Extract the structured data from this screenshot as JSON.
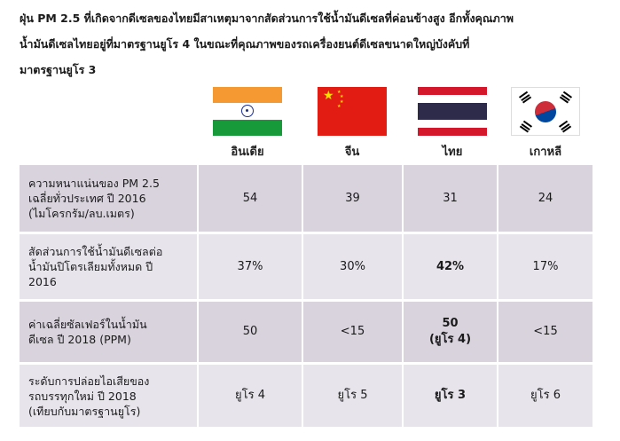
{
  "header": {
    "title_line1": "ฝุ่น PM 2.5 ที่เกิดจากดีเซลของไทยมีสาเหตุมาจากสัดส่วนการใช้น้ำมันดีเซลที่ค่อนข้างสูง อีกทั้งคุณภาพ",
    "title_line2": "น้ำมันดีเซลไทยอยู่ที่มาตรฐานยูโร 4 ในขณะที่คุณภาพของรถเครื่องยนต์ดีเซลขนาดใหญ่บังคับที่",
    "title_line3": "มาตรฐานยูโร 3"
  },
  "countries": [
    {
      "name": "อินเดีย",
      "flag": "india-flag"
    },
    {
      "name": "จีน",
      "flag": "china-flag"
    },
    {
      "name": "ไทย",
      "flag": "thailand-flag"
    },
    {
      "name": "เกาหลี",
      "flag": "south-korea-flag"
    }
  ],
  "colors": {
    "row_dark": "#d9d3de",
    "row_light": "#e8e4ec"
  },
  "rows": [
    {
      "label_lines": [
        "ความหนาแน่นของ PM 2.5",
        "เฉลี่ยทั่วประเทศ ปี 2016",
        "(ไมโครกรัม/ลบ.เมตร)"
      ],
      "values": [
        "54",
        "39",
        "31",
        "24"
      ]
    },
    {
      "label_lines": [
        "สัดส่วนการใช้น้ำมันดีเซลต่อ",
        "น้ำมันปิโตรเลียมทั้งหมด ปี",
        "2016"
      ],
      "values": [
        "37%",
        "30%",
        "42%",
        "17%"
      ]
    },
    {
      "label_lines": [
        "ค่าเฉลี่ยซัลเฟอร์ในน้ำมัน",
        "ดีเซล ปี 2018 (PPM)"
      ],
      "values": [
        "50",
        "<15",
        "50",
        "<15"
      ],
      "thai_sub": "(ยูโร 4)"
    },
    {
      "label_lines": [
        "ระดับการปล่อยไอเสียของ",
        "รถบรรทุกใหม่ ปี 2018",
        "(เทียบกับมาตรฐานยูโร)"
      ],
      "values": [
        "ยูโร 4",
        "ยูโร 5",
        "ยูโร 3",
        "ยูโร 6"
      ]
    }
  ]
}
